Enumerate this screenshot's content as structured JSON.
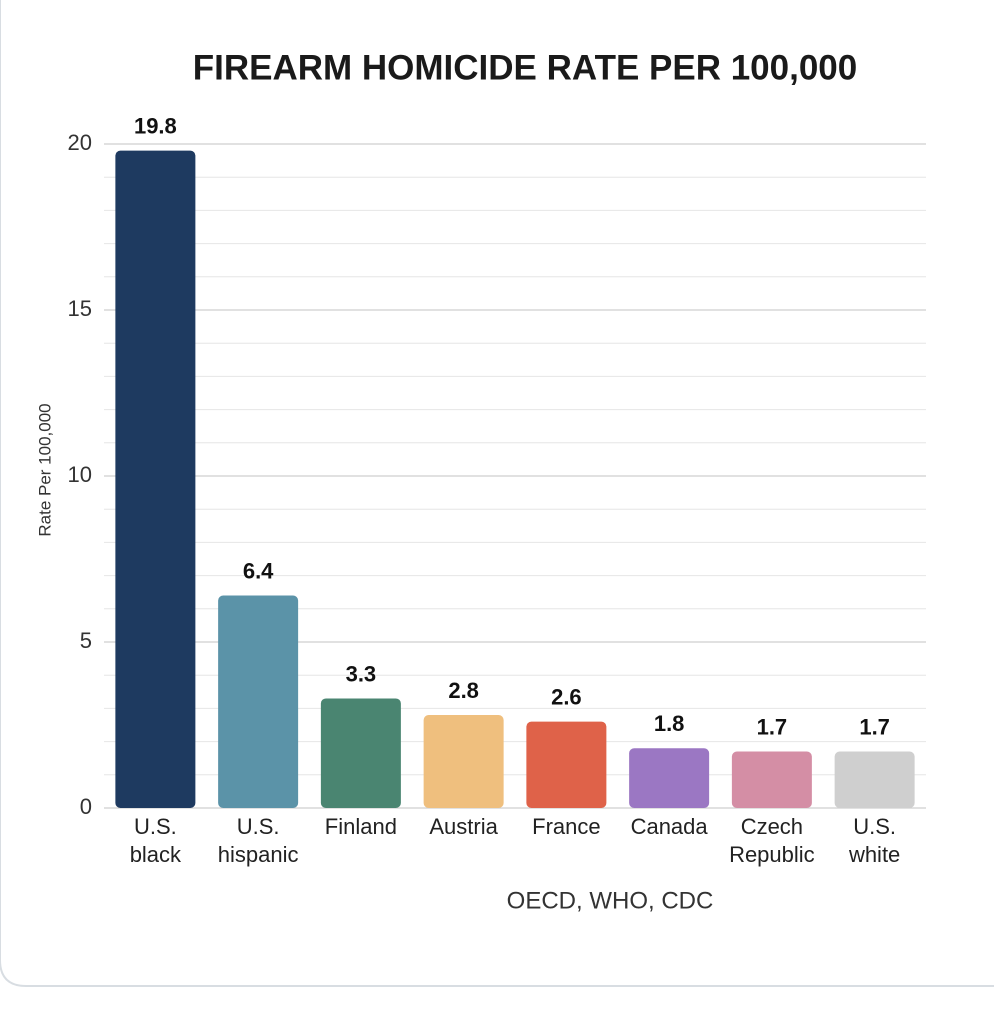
{
  "chart_data": {
    "type": "bar",
    "title": "FIREARM HOMICIDE RATE PER 100,000",
    "y_label": "Rate Per 100,000",
    "source": "OECD, WHO, CDC",
    "categories": [
      [
        "U.S.",
        "black"
      ],
      [
        "U.S.",
        "hispanic"
      ],
      [
        "Finland"
      ],
      [
        "Austria"
      ],
      [
        "France"
      ],
      [
        "Canada"
      ],
      [
        "Czech",
        "Republic"
      ],
      [
        "U.S.",
        "white"
      ]
    ],
    "values": [
      19.8,
      6.4,
      3.3,
      2.8,
      2.6,
      1.8,
      1.7,
      1.7
    ],
    "colors": [
      "#1e3a60",
      "#5b93a8",
      "#4a8571",
      "#efbf7e",
      "#df6249",
      "#9b77c3",
      "#d48ea5",
      "#cfcfcf"
    ],
    "ylim": [
      0,
      20
    ],
    "yticks": [
      0,
      5,
      10,
      15,
      20
    ],
    "y_minor_ticks": [
      1,
      2,
      3,
      4,
      6,
      7,
      8,
      9,
      11,
      12,
      13,
      14,
      16,
      17,
      18,
      19
    ],
    "grid": true
  }
}
